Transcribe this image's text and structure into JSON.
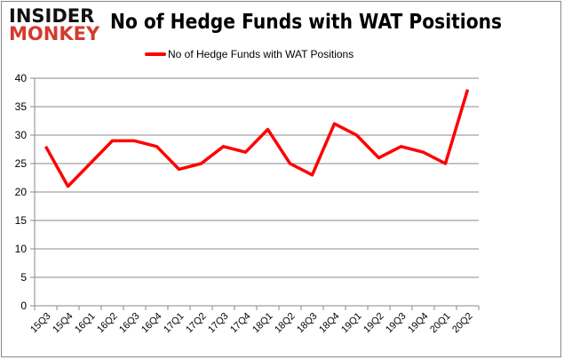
{
  "logo": {
    "line1": "INSIDER",
    "line2": "MONKEY"
  },
  "chart_data": {
    "type": "line",
    "title": "No of Hedge Funds with WAT Positions",
    "categories": [
      "15Q3",
      "15Q4",
      "16Q1",
      "16Q2",
      "16Q3",
      "16Q4",
      "17Q1",
      "17Q2",
      "17Q3",
      "17Q4",
      "18Q1",
      "18Q2",
      "18Q3",
      "18Q4",
      "19Q1",
      "19Q2",
      "19Q3",
      "19Q4",
      "20Q1",
      "20Q2"
    ],
    "series": [
      {
        "name": "No of Hedge Funds with WAT Positions",
        "color": "#ff0000",
        "values": [
          28,
          21,
          25,
          29,
          29,
          28,
          24,
          25,
          28,
          27,
          31,
          25,
          23,
          32,
          30,
          26,
          28,
          27,
          25,
          38
        ]
      }
    ],
    "ylim": [
      0,
      40
    ],
    "yticks": [
      0,
      5,
      10,
      15,
      20,
      25,
      30,
      35,
      40
    ],
    "grid": true,
    "legend": "top"
  }
}
